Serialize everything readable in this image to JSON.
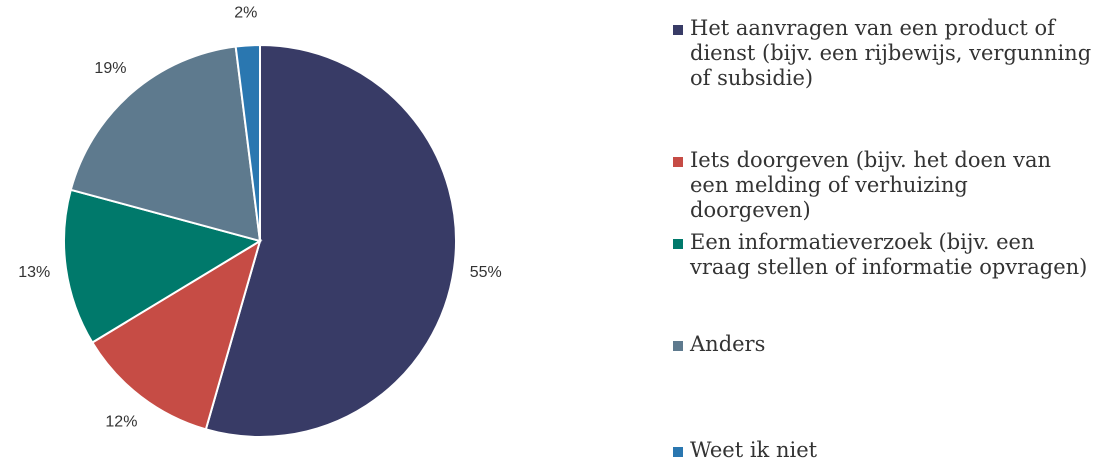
{
  "chart_data": {
    "type": "pie",
    "categories": [
      "Het aanvragen van een product of dienst (bijv. een rijbewijs, vergunning of subsidie)",
      "Iets doorgeven (bijv. het doen van een melding of verhuizing doorgeven)",
      "Een informatieverzoek (bijv. een vraag stellen of informatie opvragen)",
      "Anders",
      "Weet ik niet"
    ],
    "values": [
      55,
      12,
      13,
      19,
      2
    ],
    "value_labels": [
      "55%",
      "12%",
      "13%",
      "19%",
      "2%"
    ],
    "colors": [
      "#383b66",
      "#c64c45",
      "#00796b",
      "#5e7a8e",
      "#2a77b0"
    ]
  }
}
